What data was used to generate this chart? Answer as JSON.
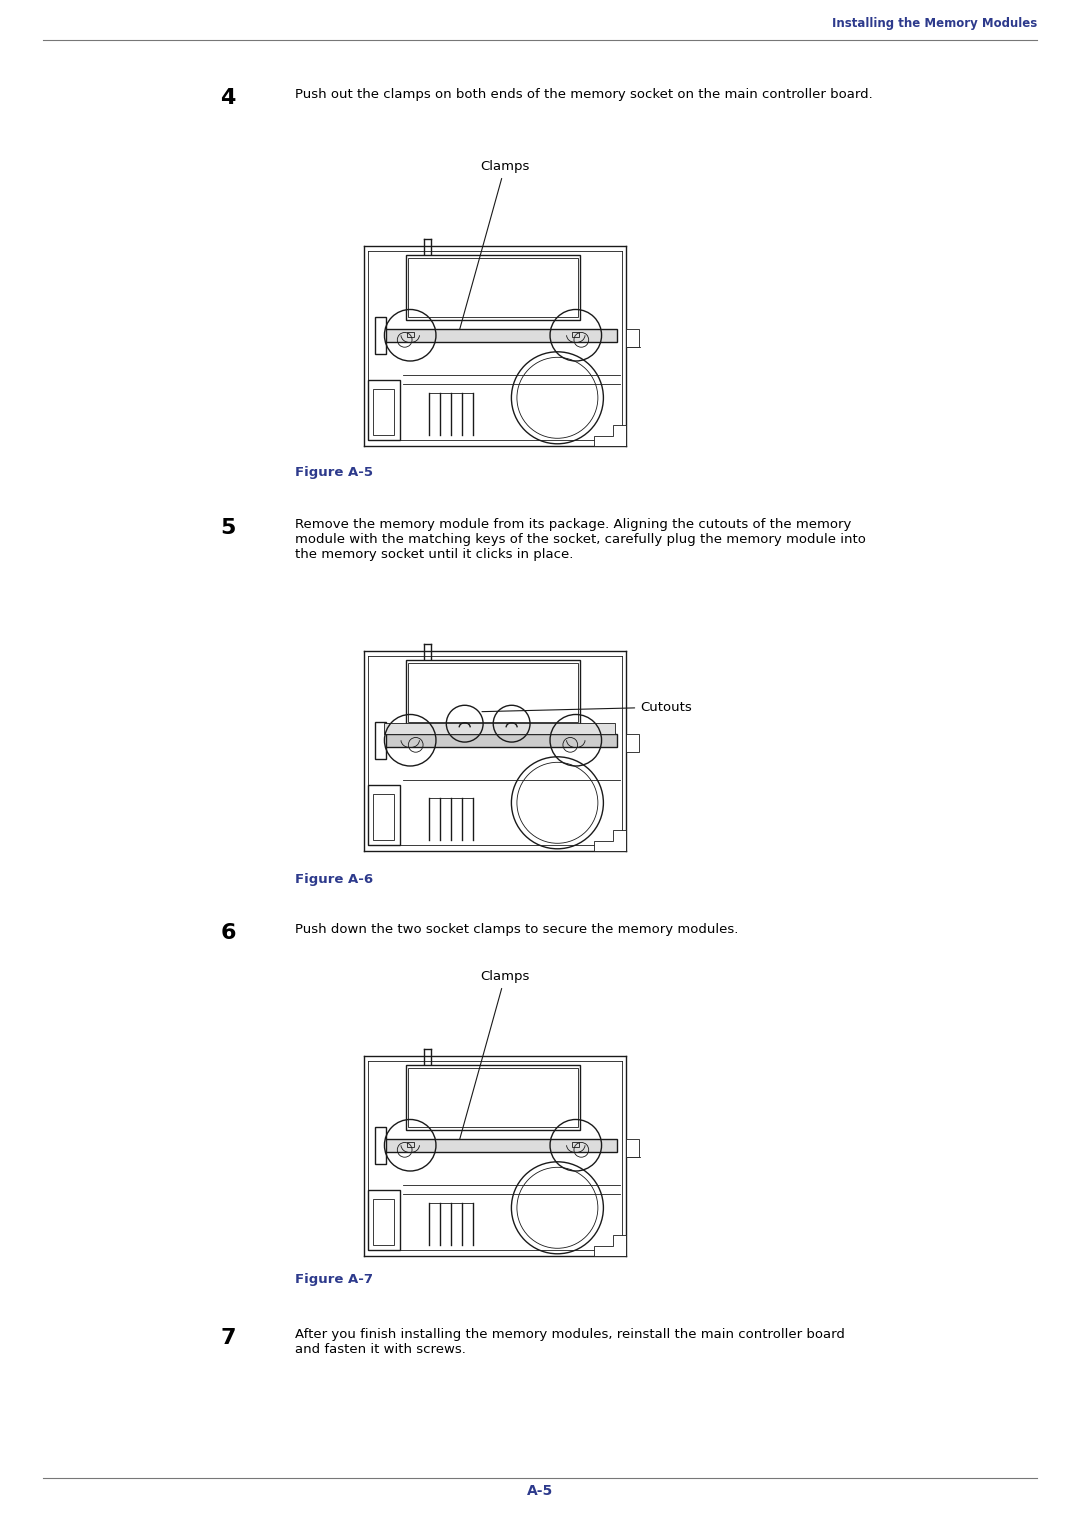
{
  "bg_color": "#ffffff",
  "header_text": "Installing the Memory Modules",
  "header_color": "#2d3a8c",
  "footer_text": "A-5",
  "footer_color": "#2d3a8c",
  "step4_num": "4",
  "step4_text": "Push out the clamps on both ends of the memory socket on the main controller board.",
  "step5_num": "5",
  "step5_text": "Remove the memory module from its package. Aligning the cutouts of the memory\nmodule with the matching keys of the socket, carefully plug the memory module into\nthe memory socket until it clicks in place.",
  "step6_num": "6",
  "step6_text": "Push down the two socket clamps to secure the memory modules.",
  "step7_num": "7",
  "step7_text": "After you finish installing the memory modules, reinstall the main controller board\nand fasten it with screws.",
  "fig_a5": "Figure A-5",
  "fig_a6": "Figure A-6",
  "fig_a7": "Figure A-7",
  "fig_color": "#2d3a8c",
  "text_color": "#000000",
  "clamp_label": "Clamps",
  "cutout_label": "Cutouts"
}
